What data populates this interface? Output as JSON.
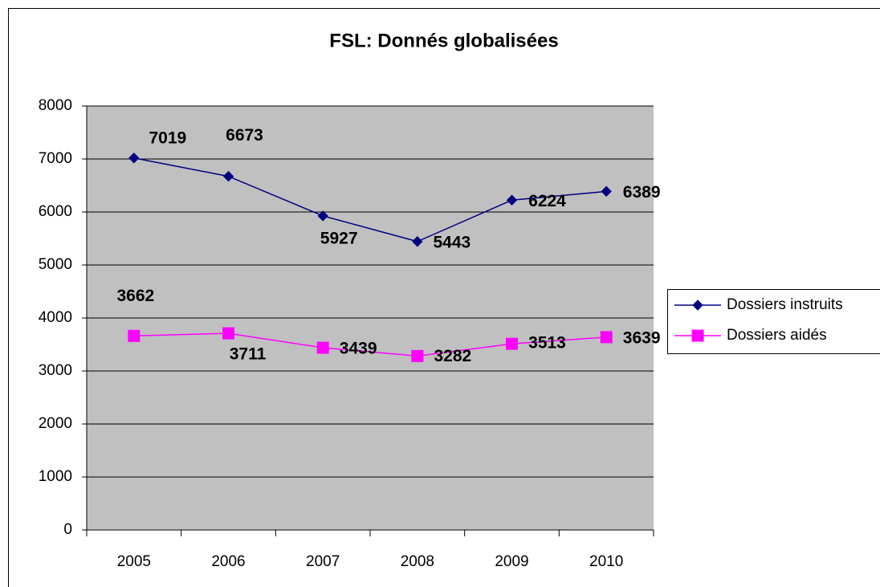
{
  "chart_data": {
    "type": "line",
    "title": "FSL: Donnés globalisées",
    "categories": [
      "2005",
      "2006",
      "2007",
      "2008",
      "2009",
      "2010"
    ],
    "series": [
      {
        "name": "Dossiers instruits",
        "color": "#000080",
        "marker": "diamond",
        "values": [
          7019,
          6673,
          5927,
          5443,
          6224,
          6389
        ]
      },
      {
        "name": "Dossiers aidés",
        "color": "#ff00ff",
        "marker": "square",
        "values": [
          3662,
          3711,
          3439,
          3282,
          3513,
          3639
        ]
      }
    ],
    "ylim": [
      0,
      8000
    ],
    "yticks": [
      0,
      1000,
      2000,
      3000,
      4000,
      5000,
      6000,
      7000,
      8000
    ],
    "grid": true,
    "legend": "right"
  }
}
